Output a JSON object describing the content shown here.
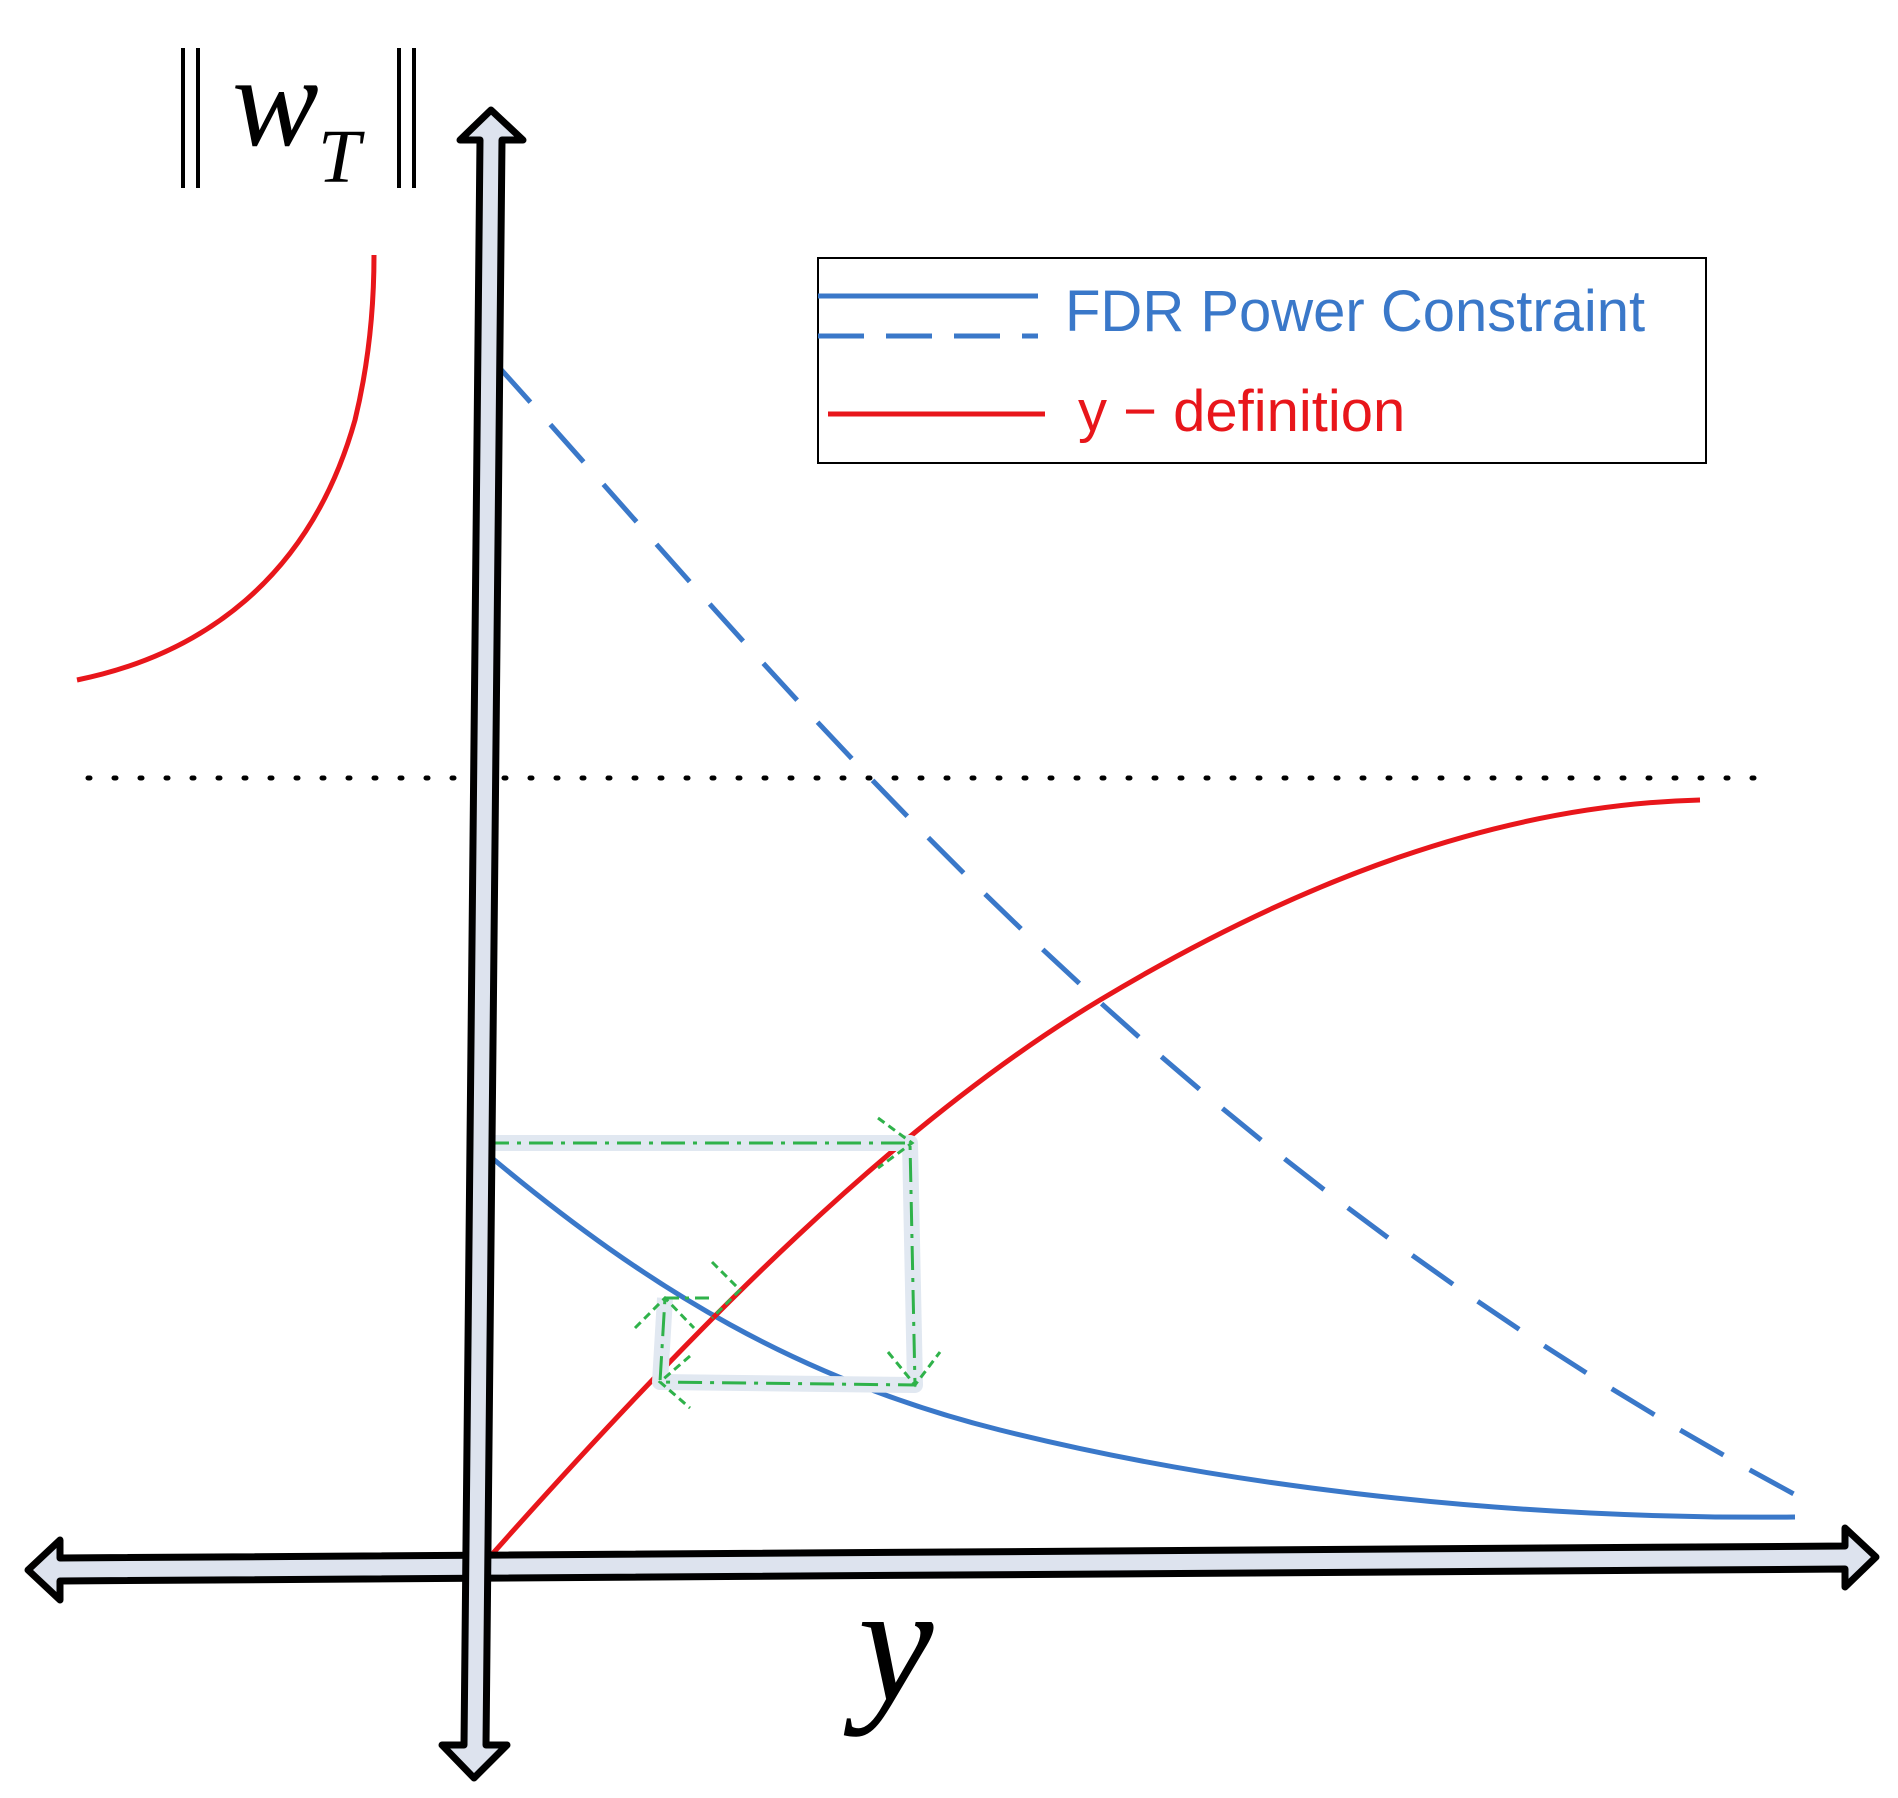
{
  "axes": {
    "y_axis_label_var": "w",
    "y_axis_label_sub": "T",
    "x_axis_label": "y"
  },
  "legend": {
    "entries": [
      {
        "label": "FDR Power Constraint",
        "color": "#3a78c9",
        "styles": [
          "solid",
          "dashed"
        ]
      },
      {
        "label": "y − definition",
        "color": "#e8161b",
        "styles": [
          "solid"
        ]
      }
    ]
  },
  "colors": {
    "fdr": "#3a78c9",
    "ydef": "#e8161b",
    "iteration": "#2fb24a",
    "axis_fill": "#dde3ee",
    "asymptote": "#000000"
  },
  "elements": {
    "fdr_solid_curve": "FDR Power Constraint (solid)",
    "fdr_dashed_curve": "FDR Power Constraint (dashed)",
    "ydef_curve": "y − definition",
    "asymptote_line": "dotted horizontal asymptote",
    "iteration_path": "iteration arrows"
  }
}
